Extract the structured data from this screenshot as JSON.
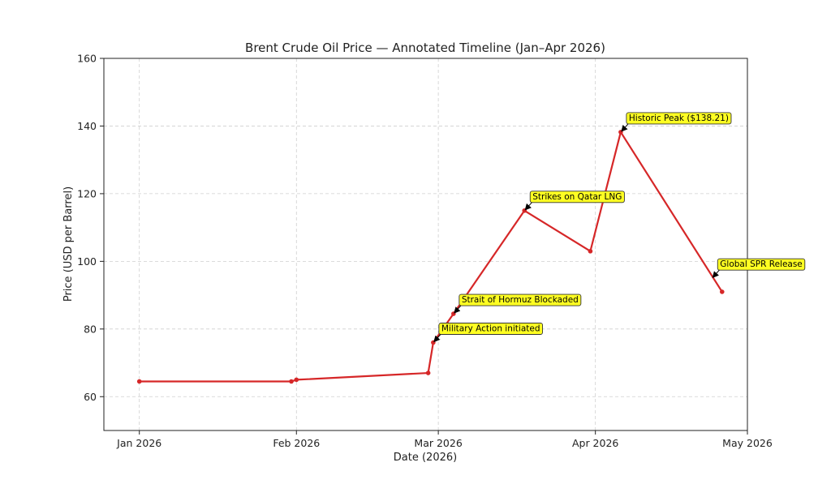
{
  "chart_data": {
    "type": "line",
    "title": "Brent Crude Oil Price — Annotated Timeline (Jan–Apr 2026)",
    "xlabel": "Date (2026)",
    "ylabel": "Price (USD per Barrel)",
    "ylim": [
      50,
      160
    ],
    "xlim": [
      "2025-12-25",
      "2026-05-01"
    ],
    "grid": true,
    "line_color": "#d62728",
    "annotation_box_color": "#ffff22",
    "xticks": [
      {
        "date": "2026-01-01",
        "label": "Jan 2026"
      },
      {
        "date": "2026-02-01",
        "label": "Feb 2026"
      },
      {
        "date": "2026-03-01",
        "label": "Mar 2026"
      },
      {
        "date": "2026-04-01",
        "label": "Apr 2026"
      },
      {
        "date": "2026-05-01",
        "label": "May 2026"
      }
    ],
    "yticks": [
      60,
      80,
      100,
      120,
      140,
      160
    ],
    "series": [
      {
        "points": [
          {
            "x": "2026-01-01",
            "y": 64.5
          },
          {
            "x": "2026-01-31",
            "y": 64.5
          },
          {
            "x": "2026-02-01",
            "y": 65.0
          },
          {
            "x": "2026-02-27",
            "y": 67.0
          },
          {
            "x": "2026-02-28",
            "y": 76.0
          },
          {
            "x": "2026-03-04",
            "y": 84.5
          },
          {
            "x": "2026-03-18",
            "y": 115.0
          },
          {
            "x": "2026-03-31",
            "y": 103.0
          },
          {
            "x": "2026-04-06",
            "y": 138.21
          },
          {
            "x": "2026-04-26",
            "y": 91.0
          }
        ]
      }
    ],
    "annotations": [
      {
        "text": "Military Action initiated",
        "x": "2026-02-28",
        "y": 76.0
      },
      {
        "text": "Strait of Hormuz Blockaded",
        "x": "2026-03-04",
        "y": 84.5
      },
      {
        "text": "Strikes on Qatar LNG",
        "x": "2026-03-18",
        "y": 115.0
      },
      {
        "text": "Historic Peak ($138.21)",
        "x": "2026-04-06",
        "y": 138.21
      },
      {
        "text": "Global SPR Release",
        "x": "2026-04-24",
        "y": 95.0
      }
    ]
  }
}
